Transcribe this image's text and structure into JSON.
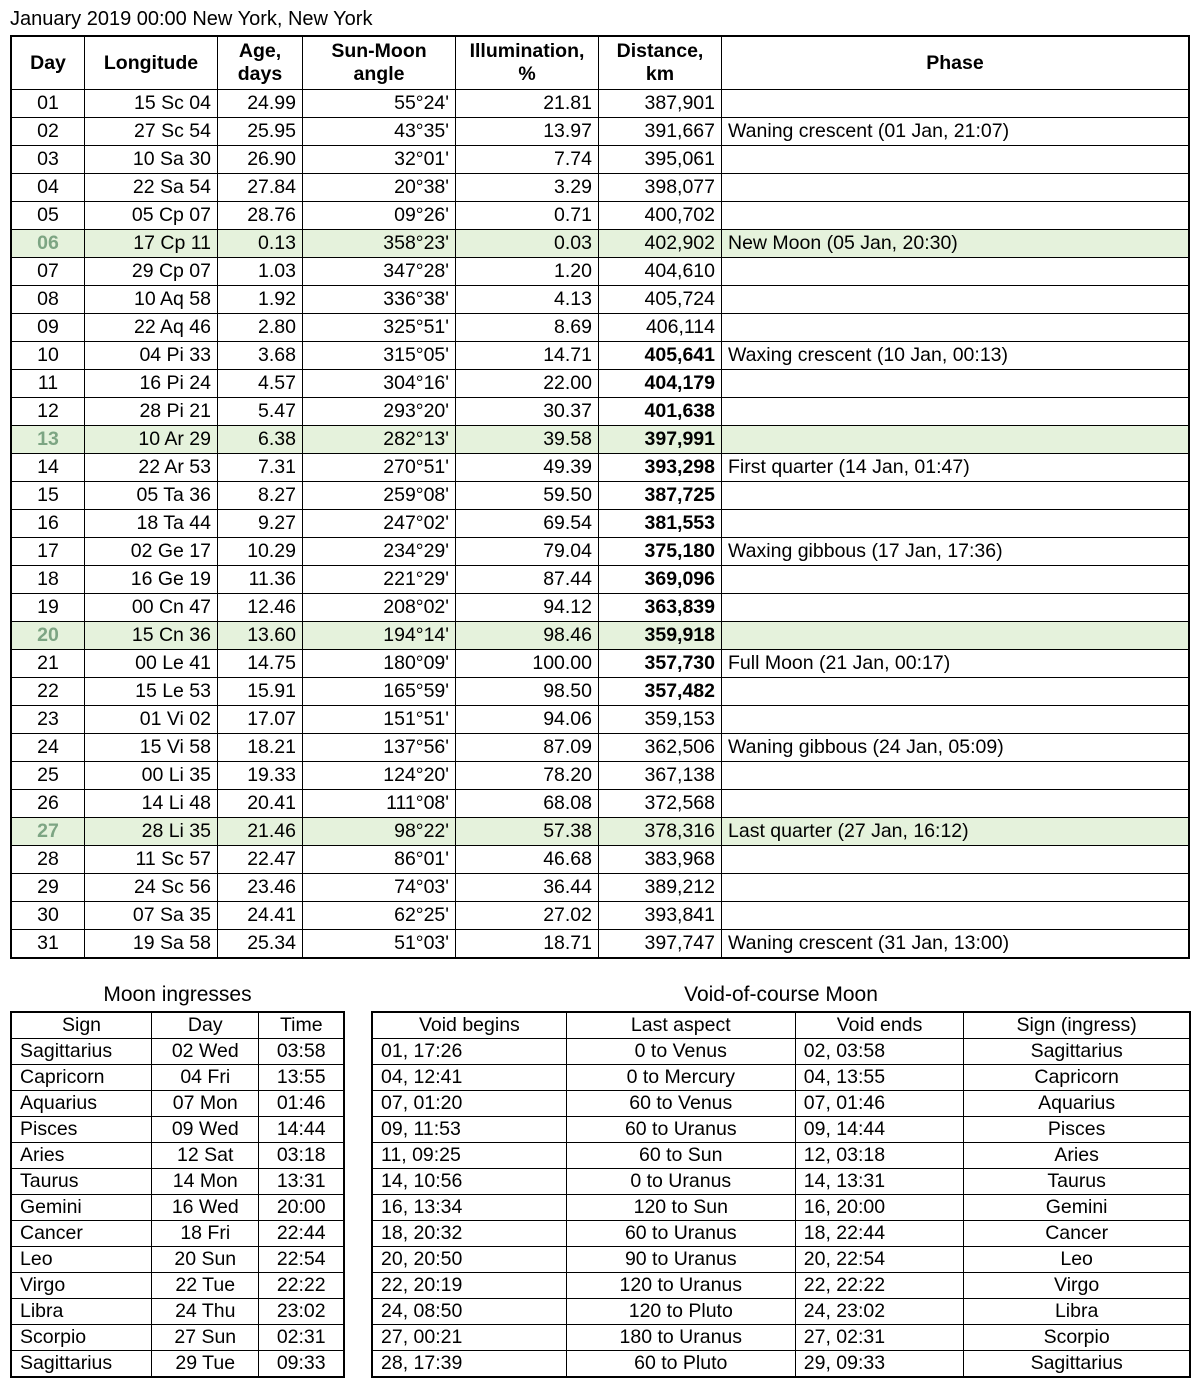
{
  "header": "January 2019  00:00   New York, New York",
  "main": {
    "columns": [
      "Day",
      "Longitude",
      "Age, days",
      "Sun-Moon angle",
      "Illumination, %",
      "Distance, km",
      "Phase"
    ],
    "col_widths": [
      "60px",
      "120px",
      "72px",
      "140px",
      "130px",
      "110px",
      "auto"
    ],
    "highlight_color": "#e5f2dc",
    "highlight_day_color": "#7da583",
    "rows": [
      {
        "d": "01",
        "lon": "15 Sc 04",
        "age": "24.99",
        "ang": "55°24'",
        "ill": "21.81",
        "dist": "387,901",
        "db": false,
        "ph": "",
        "hl": false
      },
      {
        "d": "02",
        "lon": "27 Sc 54",
        "age": "25.95",
        "ang": "43°35'",
        "ill": "13.97",
        "dist": "391,667",
        "db": false,
        "ph": "Waning crescent (01 Jan, 21:07)",
        "hl": false
      },
      {
        "d": "03",
        "lon": "10 Sa 30",
        "age": "26.90",
        "ang": "32°01'",
        "ill": "7.74",
        "dist": "395,061",
        "db": false,
        "ph": "",
        "hl": false
      },
      {
        "d": "04",
        "lon": "22 Sa 54",
        "age": "27.84",
        "ang": "20°38'",
        "ill": "3.29",
        "dist": "398,077",
        "db": false,
        "ph": "",
        "hl": false
      },
      {
        "d": "05",
        "lon": "05 Cp 07",
        "age": "28.76",
        "ang": "09°26'",
        "ill": "0.71",
        "dist": "400,702",
        "db": false,
        "ph": "",
        "hl": false
      },
      {
        "d": "06",
        "lon": "17 Cp 11",
        "age": "0.13",
        "ang": "358°23'",
        "ill": "0.03",
        "dist": "402,902",
        "db": false,
        "ph": "New Moon (05 Jan, 20:30)",
        "hl": true
      },
      {
        "d": "07",
        "lon": "29 Cp 07",
        "age": "1.03",
        "ang": "347°28'",
        "ill": "1.20",
        "dist": "404,610",
        "db": false,
        "ph": "",
        "hl": false
      },
      {
        "d": "08",
        "lon": "10 Aq 58",
        "age": "1.92",
        "ang": "336°38'",
        "ill": "4.13",
        "dist": "405,724",
        "db": false,
        "ph": "",
        "hl": false
      },
      {
        "d": "09",
        "lon": "22 Aq 46",
        "age": "2.80",
        "ang": "325°51'",
        "ill": "8.69",
        "dist": "406,114",
        "db": false,
        "ph": "",
        "hl": false
      },
      {
        "d": "10",
        "lon": "04 Pi 33",
        "age": "3.68",
        "ang": "315°05'",
        "ill": "14.71",
        "dist": "405,641",
        "db": true,
        "ph": "Waxing crescent (10 Jan, 00:13)",
        "hl": false
      },
      {
        "d": "11",
        "lon": "16 Pi 24",
        "age": "4.57",
        "ang": "304°16'",
        "ill": "22.00",
        "dist": "404,179",
        "db": true,
        "ph": "",
        "hl": false
      },
      {
        "d": "12",
        "lon": "28 Pi 21",
        "age": "5.47",
        "ang": "293°20'",
        "ill": "30.37",
        "dist": "401,638",
        "db": true,
        "ph": "",
        "hl": false
      },
      {
        "d": "13",
        "lon": "10 Ar 29",
        "age": "6.38",
        "ang": "282°13'",
        "ill": "39.58",
        "dist": "397,991",
        "db": true,
        "ph": "",
        "hl": true
      },
      {
        "d": "14",
        "lon": "22 Ar 53",
        "age": "7.31",
        "ang": "270°51'",
        "ill": "49.39",
        "dist": "393,298",
        "db": true,
        "ph": "First quarter (14 Jan, 01:47)",
        "hl": false
      },
      {
        "d": "15",
        "lon": "05 Ta 36",
        "age": "8.27",
        "ang": "259°08'",
        "ill": "59.50",
        "dist": "387,725",
        "db": true,
        "ph": "",
        "hl": false
      },
      {
        "d": "16",
        "lon": "18 Ta 44",
        "age": "9.27",
        "ang": "247°02'",
        "ill": "69.54",
        "dist": "381,553",
        "db": true,
        "ph": "",
        "hl": false
      },
      {
        "d": "17",
        "lon": "02 Ge 17",
        "age": "10.29",
        "ang": "234°29'",
        "ill": "79.04",
        "dist": "375,180",
        "db": true,
        "ph": "Waxing gibbous (17 Jan, 17:36)",
        "hl": false
      },
      {
        "d": "18",
        "lon": "16 Ge 19",
        "age": "11.36",
        "ang": "221°29'",
        "ill": "87.44",
        "dist": "369,096",
        "db": true,
        "ph": "",
        "hl": false
      },
      {
        "d": "19",
        "lon": "00 Cn 47",
        "age": "12.46",
        "ang": "208°02'",
        "ill": "94.12",
        "dist": "363,839",
        "db": true,
        "ph": "",
        "hl": false
      },
      {
        "d": "20",
        "lon": "15 Cn 36",
        "age": "13.60",
        "ang": "194°14'",
        "ill": "98.46",
        "dist": "359,918",
        "db": true,
        "ph": "",
        "hl": true
      },
      {
        "d": "21",
        "lon": "00 Le 41",
        "age": "14.75",
        "ang": "180°09'",
        "ill": "100.00",
        "dist": "357,730",
        "db": true,
        "ph": "Full Moon (21 Jan, 00:17)",
        "hl": false
      },
      {
        "d": "22",
        "lon": "15 Le 53",
        "age": "15.91",
        "ang": "165°59'",
        "ill": "98.50",
        "dist": "357,482",
        "db": true,
        "ph": "",
        "hl": false
      },
      {
        "d": "23",
        "lon": "01 Vi 02",
        "age": "17.07",
        "ang": "151°51'",
        "ill": "94.06",
        "dist": "359,153",
        "db": false,
        "ph": "",
        "hl": false
      },
      {
        "d": "24",
        "lon": "15 Vi 58",
        "age": "18.21",
        "ang": "137°56'",
        "ill": "87.09",
        "dist": "362,506",
        "db": false,
        "ph": "Waning gibbous (24 Jan, 05:09)",
        "hl": false
      },
      {
        "d": "25",
        "lon": "00 Li 35",
        "age": "19.33",
        "ang": "124°20'",
        "ill": "78.20",
        "dist": "367,138",
        "db": false,
        "ph": "",
        "hl": false
      },
      {
        "d": "26",
        "lon": "14 Li 48",
        "age": "20.41",
        "ang": "111°08'",
        "ill": "68.08",
        "dist": "372,568",
        "db": false,
        "ph": "",
        "hl": false
      },
      {
        "d": "27",
        "lon": "28 Li 35",
        "age": "21.46",
        "ang": "98°22'",
        "ill": "57.38",
        "dist": "378,316",
        "db": false,
        "ph": "Last quarter (27 Jan, 16:12)",
        "hl": true
      },
      {
        "d": "28",
        "lon": "11 Sc 57",
        "age": "22.47",
        "ang": "86°01'",
        "ill": "46.68",
        "dist": "383,968",
        "db": false,
        "ph": "",
        "hl": false
      },
      {
        "d": "29",
        "lon": "24 Sc 56",
        "age": "23.46",
        "ang": "74°03'",
        "ill": "36.44",
        "dist": "389,212",
        "db": false,
        "ph": "",
        "hl": false
      },
      {
        "d": "30",
        "lon": "07 Sa 35",
        "age": "24.41",
        "ang": "62°25'",
        "ill": "27.02",
        "dist": "393,841",
        "db": false,
        "ph": "",
        "hl": false
      },
      {
        "d": "31",
        "lon": "19 Sa 58",
        "age": "25.34",
        "ang": "51°03'",
        "ill": "18.71",
        "dist": "397,747",
        "db": false,
        "ph": "Waning crescent (31 Jan, 13:00)",
        "hl": false
      }
    ]
  },
  "ingress": {
    "title": "Moon ingresses",
    "columns": [
      "Sign",
      "Day",
      "Time"
    ],
    "rows": [
      [
        "Sagittarius",
        "02 Wed",
        "03:58"
      ],
      [
        "Capricorn",
        "04 Fri",
        "13:55"
      ],
      [
        "Aquarius",
        "07 Mon",
        "01:46"
      ],
      [
        "Pisces",
        "09 Wed",
        "14:44"
      ],
      [
        "Aries",
        "12 Sat",
        "03:18"
      ],
      [
        "Taurus",
        "14 Mon",
        "13:31"
      ],
      [
        "Gemini",
        "16 Wed",
        "20:00"
      ],
      [
        "Cancer",
        "18 Fri",
        "22:44"
      ],
      [
        "Leo",
        "20 Sun",
        "22:54"
      ],
      [
        "Virgo",
        "22 Tue",
        "22:22"
      ],
      [
        "Libra",
        "24 Thu",
        "23:02"
      ],
      [
        "Scorpio",
        "27 Sun",
        "02:31"
      ],
      [
        "Sagittarius",
        "29 Tue",
        "09:33"
      ]
    ]
  },
  "voc": {
    "title": "Void-of-course Moon",
    "columns": [
      "Void begins",
      "Last aspect",
      "Void ends",
      "Sign (ingress)"
    ],
    "rows": [
      [
        "01,  17:26",
        "0 to Venus",
        "02, 03:58",
        "Sagittarius"
      ],
      [
        "04,  12:41",
        "0 to Mercury",
        "04, 13:55",
        "Capricorn"
      ],
      [
        "07,  01:20",
        "60 to Venus",
        "07, 01:46",
        "Aquarius"
      ],
      [
        "09,  11:53",
        "60 to Uranus",
        "09, 14:44",
        "Pisces"
      ],
      [
        "11,  09:25",
        "60 to Sun",
        "12, 03:18",
        "Aries"
      ],
      [
        "14,  10:56",
        "0 to Uranus",
        "14, 13:31",
        "Taurus"
      ],
      [
        "16,  13:34",
        "120 to Sun",
        "16, 20:00",
        "Gemini"
      ],
      [
        "18,  20:32",
        "60 to Uranus",
        "18, 22:44",
        "Cancer"
      ],
      [
        "20,  20:50",
        "90 to Uranus",
        "20, 22:54",
        "Leo"
      ],
      [
        "22,  20:19",
        "120 to Uranus",
        "22, 22:22",
        "Virgo"
      ],
      [
        "24,  08:50",
        "120 to Pluto",
        "24, 23:02",
        "Libra"
      ],
      [
        "27,  00:21",
        "180 to Uranus",
        "27, 02:31",
        "Scorpio"
      ],
      [
        "28,  17:39",
        "60 to Pluto",
        "29, 09:33",
        "Sagittarius"
      ]
    ]
  }
}
